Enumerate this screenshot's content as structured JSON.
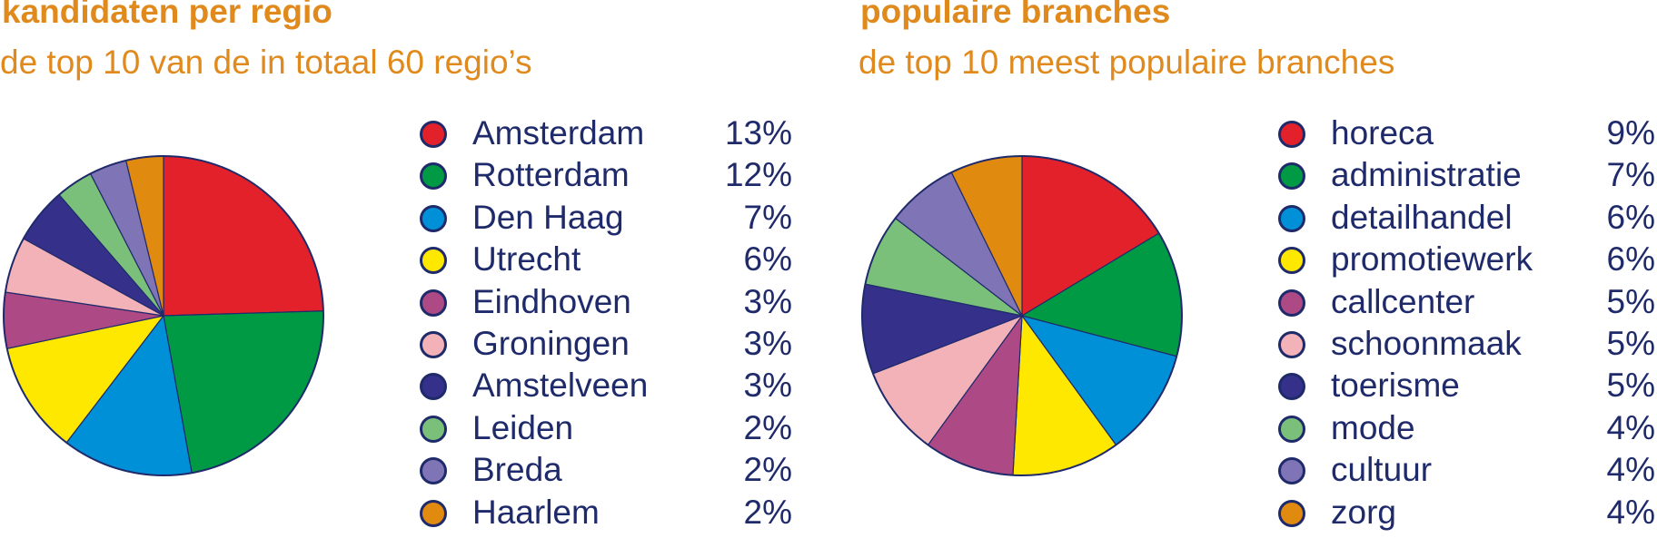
{
  "chart_data": [
    {
      "type": "pie",
      "title": "kandidaten per regio",
      "subtitle": "de top 10 van de in totaal 60 regio’s",
      "legend_position": "right",
      "categories": [
        "Amsterdam",
        "Rotterdam",
        "Den Haag",
        "Utrecht",
        "Eindhoven",
        "Groningen",
        "Amstelveen",
        "Leiden",
        "Breda",
        "Haarlem"
      ],
      "values": [
        13,
        12,
        7,
        6,
        3,
        3,
        3,
        2,
        2,
        2
      ],
      "value_labels": [
        "13%",
        "12%",
        "7%",
        "6%",
        "3%",
        "3%",
        "3%",
        "2%",
        "2%",
        "2%"
      ],
      "colors": [
        "#e3212b",
        "#009a44",
        "#0090d8",
        "#ffe800",
        "#ad4a85",
        "#f3b2b8",
        "#35318a",
        "#7bc07a",
        "#7f75b6",
        "#e08a0f"
      ]
    },
    {
      "type": "pie",
      "title": "populaire branches",
      "subtitle": "de top 10 meest populaire branches",
      "legend_position": "right",
      "categories": [
        "horeca",
        "administratie",
        "detailhandel",
        "promotiewerk",
        "callcenter",
        "schoonmaak",
        "toerisme",
        "mode",
        "cultuur",
        "zorg"
      ],
      "values": [
        9,
        7,
        6,
        6,
        5,
        5,
        5,
        4,
        4,
        4
      ],
      "value_labels": [
        "9%",
        "7%",
        "6%",
        "6%",
        "5%",
        "5%",
        "5%",
        "4%",
        "4%",
        "4%"
      ],
      "colors": [
        "#e3212b",
        "#009a44",
        "#0090d8",
        "#ffe800",
        "#ad4a85",
        "#f3b2b8",
        "#35318a",
        "#7bc07a",
        "#7f75b6",
        "#e08a0f"
      ]
    }
  ]
}
